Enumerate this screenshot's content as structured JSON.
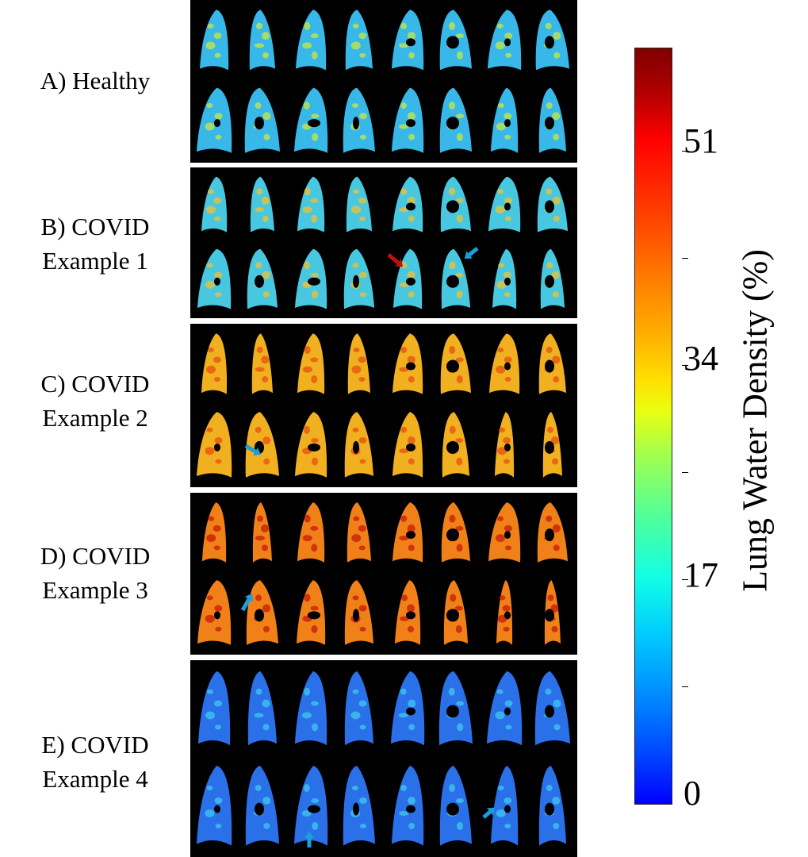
{
  "rows": [
    {
      "line1": "A) Healthy",
      "line2": ""
    },
    {
      "line1": "B) COVID",
      "line2": "Example 1"
    },
    {
      "line1": "C) COVID",
      "line2": "Example 2"
    },
    {
      "line1": "D) COVID",
      "line2": "Example 3"
    },
    {
      "line1": "E) COVID",
      "line2": "Example 4"
    }
  ],
  "colorbar": {
    "title": "Lung Water Density (%)",
    "ticks": [
      "51",
      "34",
      "17",
      "0"
    ]
  },
  "colors": {
    "healthy": "#38b8e8",
    "healthy_hot": "#c8e840",
    "covid1": "#48c8e0",
    "covid1_hot": "#f0c030",
    "covid2": "#f0b020",
    "covid2_hot": "#e85010",
    "covid3": "#f08018",
    "covid3_hot": "#c81808",
    "covid4": "#2a70e8",
    "covid4_hot": "#40c8f0",
    "arrow_blue": "#1aa0dc",
    "arrow_red": "#c01010"
  }
}
